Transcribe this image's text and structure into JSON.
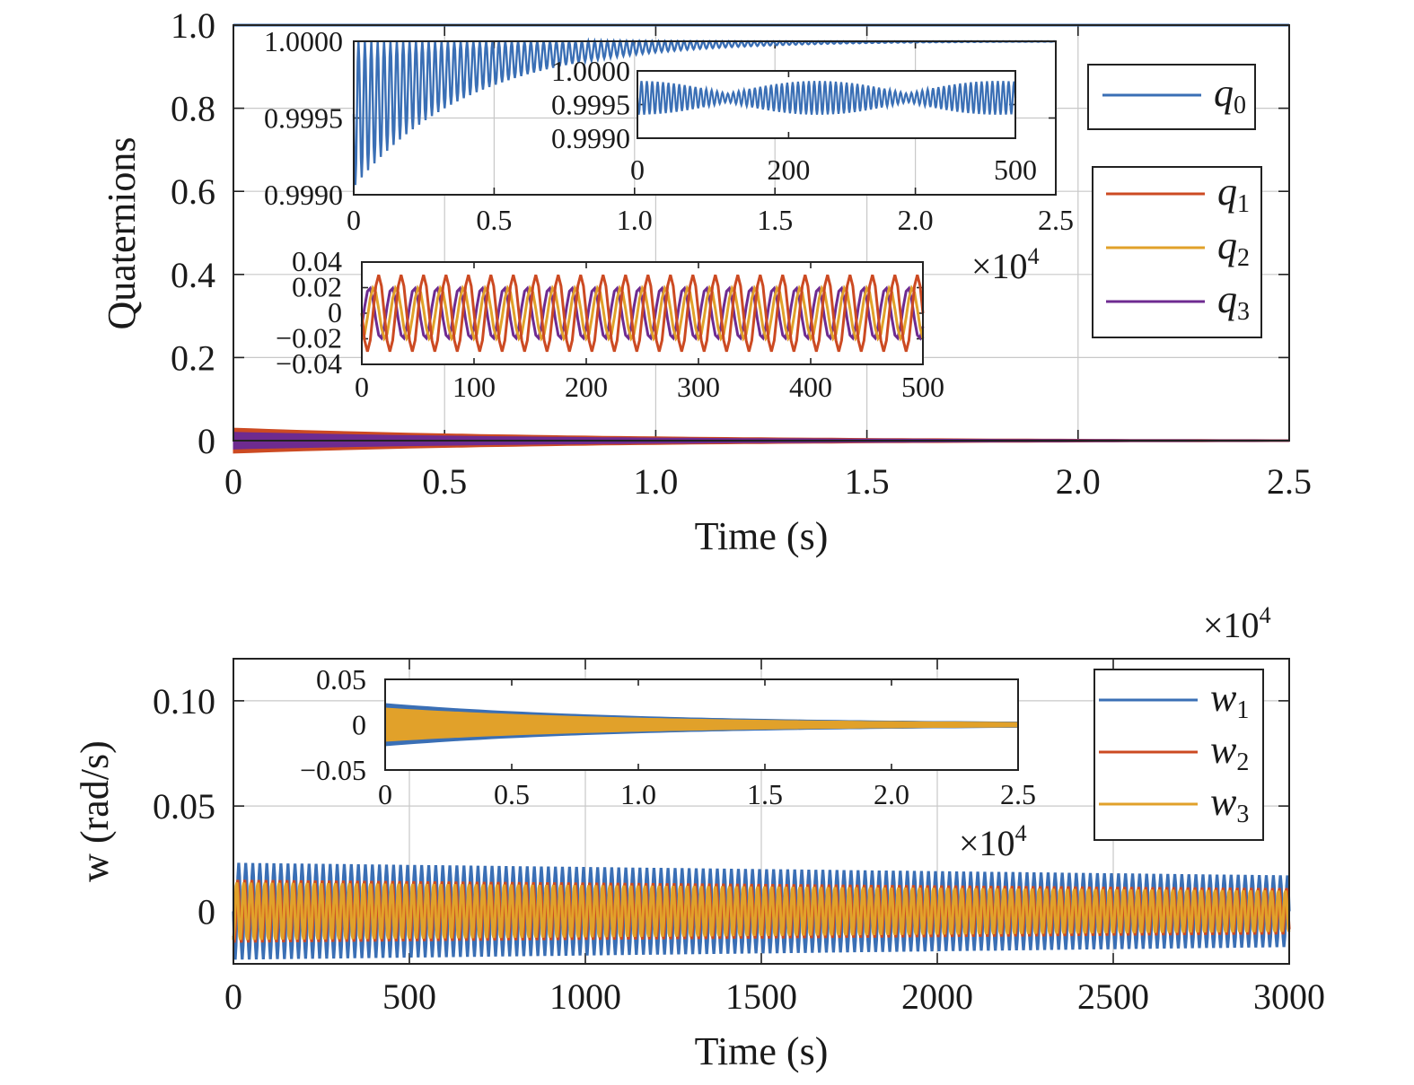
{
  "colors": {
    "blue": "#3a6fb5",
    "red": "#cc4a22",
    "yellow": "#e1a12a",
    "purple": "#6e2b90",
    "grid": "#c8c8c8",
    "axis": "#222222"
  },
  "chart_data": [
    {
      "type": "line",
      "panel": "top",
      "ylabel": "Quaternions",
      "xlabel": "Time (s)",
      "xlim": [
        0,
        2.5
      ],
      "ylim": [
        0,
        1.0
      ],
      "x_multiplier": "×10",
      "x_multiplier_exp": "4",
      "grid": true,
      "xticks": [
        0,
        0.5,
        1.0,
        1.5,
        2.0,
        2.5
      ],
      "xtick_labels": [
        "0",
        "0.5",
        "1.0",
        "1.5",
        "2.0",
        "2.5"
      ],
      "yticks": [
        0,
        0.2,
        0.4,
        0.6,
        0.8,
        1.0
      ],
      "ytick_labels": [
        "0",
        "0.2",
        "0.4",
        "0.6",
        "0.8",
        "1.0"
      ],
      "legend": [
        {
          "symbol": "q",
          "sub": "0",
          "color": "#3a6fb5"
        },
        {
          "symbol": "q",
          "sub": "1",
          "color": "#cc4a22"
        },
        {
          "symbol": "q",
          "sub": "2",
          "color": "#e1a12a"
        },
        {
          "symbol": "q",
          "sub": "3",
          "color": "#6e2b90"
        }
      ],
      "legend_placement": "right",
      "series": [
        {
          "name": "q0",
          "color": "#3a6fb5",
          "value": 1.0
        },
        {
          "name": "q3",
          "color": "#6e2b90",
          "envelope_start": 0.02,
          "envelope_end": 0.001
        },
        {
          "name": "q1",
          "color": "#cc4a22",
          "envelope_start": 0.03,
          "envelope_end": 0.001
        }
      ],
      "insets": [
        {
          "name": "q0-zoom-full",
          "xlim": [
            0,
            2.5
          ],
          "ylim": [
            0.999,
            1.0
          ],
          "xticks": [
            0,
            0.5,
            1.0,
            1.5,
            2.0,
            2.5
          ],
          "xtick_labels": [
            "0",
            "0.5",
            "1.0",
            "1.5",
            "2.0",
            "2.5"
          ],
          "ytick_labels": [
            "1.0000",
            "0.9995",
            "0.9990"
          ],
          "x_multiplier": "×10",
          "x_multiplier_exp": "4",
          "series": [
            {
              "name": "q0",
              "color": "#3a6fb5",
              "min_start": 0.99905,
              "settles_to": 1.0
            }
          ]
        },
        {
          "name": "q0-zoom-500",
          "xlim": [
            0,
            500
          ],
          "ylim": [
            0.999,
            1.0
          ],
          "xtick_labels": [
            "0",
            "200",
            "500"
          ],
          "ytick_labels": [
            "1.0000",
            "0.9995",
            "0.9990"
          ],
          "series": [
            {
              "name": "q0",
              "color": "#3a6fb5",
              "center": 0.9996,
              "amplitude": 0.00025
            }
          ]
        },
        {
          "name": "q123-zoom-500",
          "xlim": [
            0,
            500
          ],
          "ylim": [
            -0.04,
            0.04
          ],
          "xtick_labels": [
            "0",
            "100",
            "200",
            "300",
            "400",
            "500"
          ],
          "ytick_labels": [
            "0.04",
            "0.02",
            "0",
            "−0.02",
            "−0.04"
          ],
          "series": [
            {
              "name": "q1",
              "color": "#cc4a22",
              "amplitude": 0.03
            },
            {
              "name": "q2",
              "color": "#e1a12a",
              "amplitude": 0.02
            },
            {
              "name": "q3",
              "color": "#6e2b90",
              "amplitude": 0.02
            }
          ]
        }
      ]
    },
    {
      "type": "line",
      "panel": "bottom",
      "ylabel": "w (rad/s)",
      "xlabel": "Time (s)",
      "xlim": [
        0,
        3000
      ],
      "ylim": [
        -0.025,
        0.12
      ],
      "grid": true,
      "top_multiplier": "×10",
      "top_multiplier_exp": "4",
      "xticks": [
        0,
        500,
        1000,
        1500,
        2000,
        2500,
        3000
      ],
      "xtick_labels": [
        "0",
        "500",
        "1000",
        "1500",
        "2000",
        "2500",
        "3000"
      ],
      "yticks": [
        0,
        0.05,
        0.1
      ],
      "ytick_labels": [
        "0",
        "0.05",
        "0.10"
      ],
      "legend": [
        {
          "symbol": "w",
          "sub": "1",
          "color": "#3a6fb5"
        },
        {
          "symbol": "w",
          "sub": "2",
          "color": "#cc4a22"
        },
        {
          "symbol": "w",
          "sub": "3",
          "color": "#e1a12a"
        }
      ],
      "legend_placement": "top-right",
      "series": [
        {
          "name": "w1",
          "color": "#3a6fb5",
          "amplitude_start": 0.023,
          "amplitude_end": 0.017
        },
        {
          "name": "w2",
          "color": "#cc4a22",
          "amplitude_start": 0.015,
          "amplitude_end": 0.011
        },
        {
          "name": "w3",
          "color": "#e1a12a",
          "amplitude_start": 0.014,
          "amplitude_end": 0.01
        }
      ],
      "insets": [
        {
          "name": "w-zoom-full",
          "xlim": [
            0,
            2.5
          ],
          "ylim": [
            -0.05,
            0.05
          ],
          "xticks": [
            0,
            0.5,
            1.0,
            1.5,
            2.0,
            2.5
          ],
          "xtick_labels": [
            "0",
            "0.5",
            "1.0",
            "1.5",
            "2.0",
            "2.5"
          ],
          "ytick_labels": [
            "0.05",
            "0",
            "−0.05"
          ],
          "x_multiplier": "×10",
          "x_multiplier_exp": "4",
          "series": [
            {
              "name": "w1",
              "color": "#3a6fb5",
              "amplitude_start": 0.023,
              "amplitude_end": 0.001
            },
            {
              "name": "w3",
              "color": "#e1a12a",
              "amplitude_start": 0.018,
              "amplitude_end": 0.001
            }
          ]
        }
      ]
    }
  ]
}
